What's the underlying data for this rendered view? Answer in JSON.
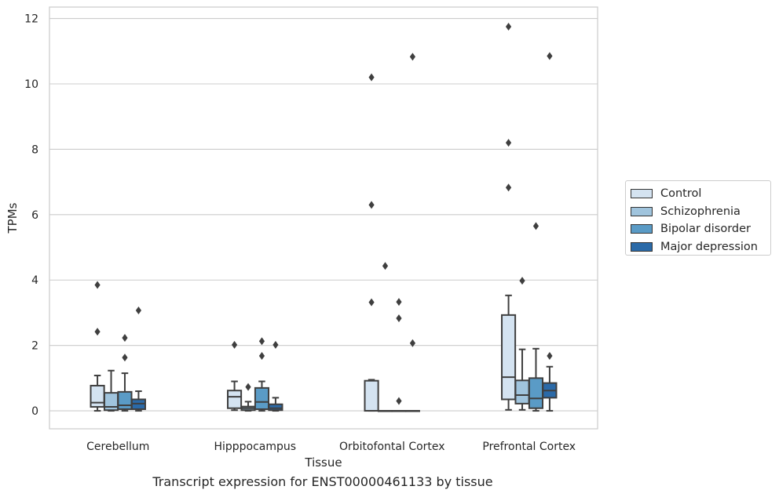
{
  "chart_data": {
    "type": "box",
    "title": "Transcript expression for ENST00000461133 by tissue",
    "xlabel": "Tissue",
    "ylabel": "TPMs",
    "ylim": [
      -0.55,
      12.35
    ],
    "yticks": [
      0,
      2,
      4,
      6,
      8,
      10,
      12
    ],
    "grid": true,
    "legend_position": "right",
    "categories": [
      "Cerebellum",
      "Hipppocampus",
      "Orbitofontal Cortex",
      "Prefrontal Cortex"
    ],
    "series": [
      {
        "name": "Control",
        "color": "#d4e3f1",
        "boxes": [
          {
            "whislo": 0.0,
            "q1": 0.12,
            "med": 0.25,
            "q3": 0.77,
            "whishi": 1.08,
            "fliers": [
              2.42,
              3.85
            ]
          },
          {
            "whislo": 0.02,
            "q1": 0.08,
            "med": 0.43,
            "q3": 0.62,
            "whishi": 0.9,
            "fliers": [
              2.02
            ]
          },
          {
            "whislo": 0.0,
            "q1": 0.0,
            "med": 0.0,
            "q3": 0.92,
            "whishi": 0.95,
            "fliers": [
              3.32,
              6.3,
              10.2
            ]
          },
          {
            "whislo": 0.03,
            "q1": 0.35,
            "med": 1.03,
            "q3": 2.93,
            "whishi": 3.53,
            "fliers": [
              6.83,
              8.2,
              11.75
            ]
          }
        ]
      },
      {
        "name": "Schizophrenia",
        "color": "#a0c4dd",
        "boxes": [
          {
            "whislo": 0.0,
            "q1": 0.02,
            "med": 0.12,
            "q3": 0.55,
            "whishi": 1.23,
            "fliers": []
          },
          {
            "whislo": 0.0,
            "q1": 0.02,
            "med": 0.08,
            "q3": 0.13,
            "whishi": 0.28,
            "fliers": [
              0.73
            ]
          },
          {
            "whislo": 0.0,
            "q1": 0.0,
            "med": 0.0,
            "q3": 0.0,
            "whishi": 0.0,
            "fliers": [
              4.43
            ]
          },
          {
            "whislo": 0.03,
            "q1": 0.22,
            "med": 0.48,
            "q3": 0.93,
            "whishi": 1.88,
            "fliers": [
              3.98
            ]
          }
        ]
      },
      {
        "name": "Bipolar disorder",
        "color": "#5a9bc6",
        "boxes": [
          {
            "whislo": 0.0,
            "q1": 0.05,
            "med": 0.17,
            "q3": 0.58,
            "whishi": 1.15,
            "fliers": [
              1.63,
              2.23
            ]
          },
          {
            "whislo": 0.0,
            "q1": 0.05,
            "med": 0.27,
            "q3": 0.7,
            "whishi": 0.9,
            "fliers": [
              1.68,
              2.13
            ]
          },
          {
            "whislo": 0.0,
            "q1": 0.0,
            "med": 0.0,
            "q3": 0.0,
            "whishi": 0.0,
            "fliers": [
              0.3,
              2.83,
              3.33
            ]
          },
          {
            "whislo": 0.0,
            "q1": 0.08,
            "med": 0.38,
            "q3": 1.0,
            "whishi": 1.9,
            "fliers": [
              5.65
            ]
          }
        ]
      },
      {
        "name": "Major depression",
        "color": "#2b6aa8",
        "boxes": [
          {
            "whislo": 0.0,
            "q1": 0.05,
            "med": 0.22,
            "q3": 0.35,
            "whishi": 0.6,
            "fliers": [
              3.07
            ]
          },
          {
            "whislo": 0.0,
            "q1": 0.02,
            "med": 0.08,
            "q3": 0.2,
            "whishi": 0.4,
            "fliers": [
              2.02
            ]
          },
          {
            "whislo": 0.0,
            "q1": 0.0,
            "med": 0.0,
            "q3": 0.0,
            "whishi": 0.0,
            "fliers": [
              2.07,
              10.83
            ]
          },
          {
            "whislo": 0.0,
            "q1": 0.4,
            "med": 0.62,
            "q3": 0.85,
            "whishi": 1.35,
            "fliers": [
              1.68,
              10.85
            ]
          }
        ]
      }
    ]
  }
}
